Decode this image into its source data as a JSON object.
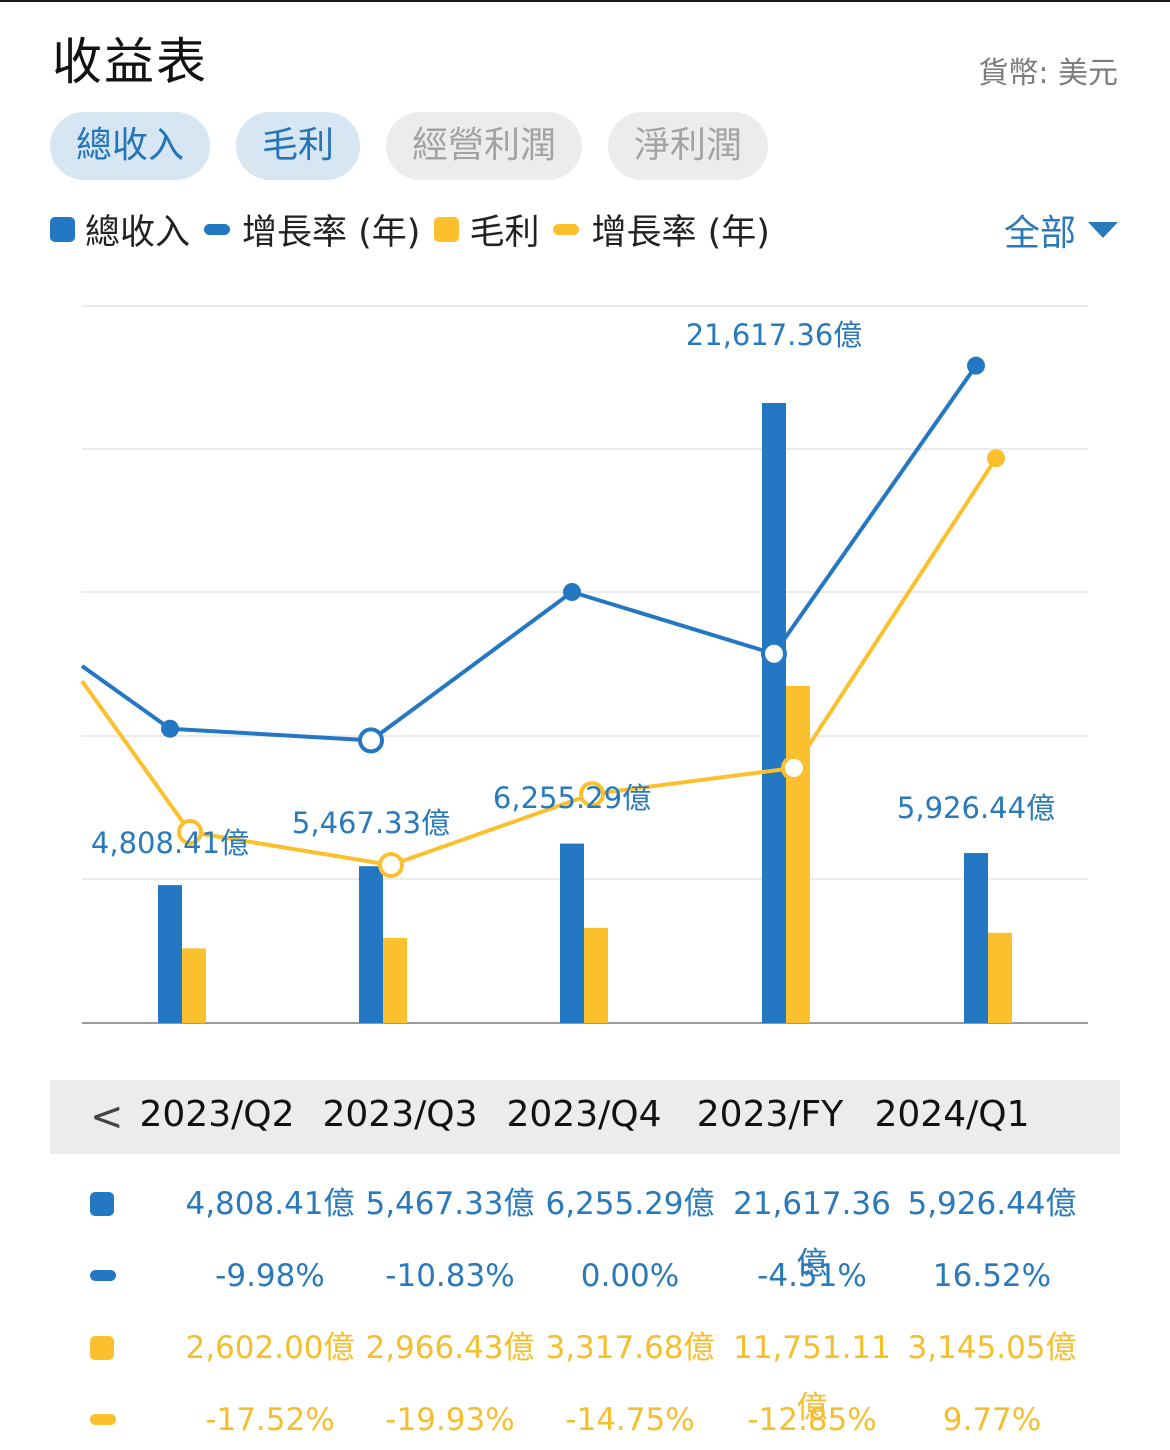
{
  "title": "收益表",
  "currency": "貨幣: 美元",
  "tabs": [
    {
      "label": "總收入",
      "active": true
    },
    {
      "label": "毛利",
      "active": true
    },
    {
      "label": "經營利潤",
      "active": false
    },
    {
      "label": "淨利潤",
      "active": false
    }
  ],
  "legend": [
    {
      "label": "總收入",
      "marker": "square",
      "color": "#2478c3"
    },
    {
      "label": "增長率 (年)",
      "marker": "dash",
      "color": "#2478c3"
    },
    {
      "label": "毛利",
      "marker": "square",
      "color": "#fbc02d"
    },
    {
      "label": "增長率 (年)",
      "marker": "dash",
      "color": "#fbc02d"
    }
  ],
  "filter": {
    "label": "全部",
    "icon": "caret-down-icon"
  },
  "nav": {
    "prev_icon": "chevron-left-icon",
    "prev_glyph": "<"
  },
  "periods": [
    "2023/Q2",
    "2023/Q3",
    "2023/Q4",
    "2023/FY",
    "2024/Q1"
  ],
  "table": {
    "rows": [
      {
        "marker": "square",
        "color": "#2478c3",
        "values": [
          "4,808.41億",
          "5,467.33億",
          "6,255.29億",
          "21,617.36億",
          "5,926.44億"
        ]
      },
      {
        "marker": "dash",
        "color": "#2478c3",
        "values": [
          "-9.98%",
          "-10.83%",
          "0.00%",
          "-4.51%",
          "16.52%"
        ]
      },
      {
        "marker": "square",
        "color": "#fbc02d",
        "values": [
          "2,602.00億",
          "2,966.43億",
          "3,317.68億",
          "11,751.11億",
          "3,145.05億"
        ]
      },
      {
        "marker": "dash",
        "color": "#fbc02d",
        "values": [
          "-17.52%",
          "-19.93%",
          "-14.75%",
          "-12.85%",
          "9.77%"
        ]
      }
    ]
  },
  "chart_data": {
    "type": "bar",
    "categories": [
      "2023/Q2",
      "2023/Q3",
      "2023/Q4",
      "2023/FY",
      "2024/Q1"
    ],
    "series": [
      {
        "name": "總收入",
        "kind": "bar",
        "color": "#2478c3",
        "values": [
          4808.41,
          5467.33,
          6255.29,
          21617.36,
          5926.44
        ],
        "labels": [
          "4,808.41億",
          "5,467.33億",
          "6,255.29億",
          "21,617.36億",
          "5,926.44億"
        ]
      },
      {
        "name": "毛利",
        "kind": "bar",
        "color": "#fbc02d",
        "values": [
          2602.0,
          2966.43,
          3317.68,
          11751.11,
          3145.05
        ]
      },
      {
        "name": "增長率 (年)",
        "kind": "line",
        "color": "#2478c3",
        "values": [
          -9.98,
          -10.83,
          0.0,
          -4.51,
          16.52
        ]
      },
      {
        "name": "增長率 (年)",
        "kind": "line",
        "color": "#fbc02d",
        "values": [
          -17.52,
          -19.93,
          -14.75,
          -12.85,
          9.77
        ]
      }
    ],
    "bar_ylim": [
      0,
      25000
    ],
    "growth_ylim": [
      -20,
      20
    ],
    "grid": true
  }
}
